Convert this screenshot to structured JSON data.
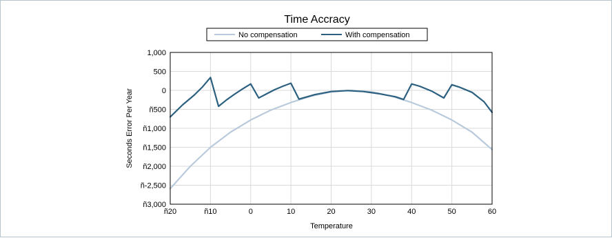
{
  "chart_data": {
    "type": "line",
    "title": "Time Accracy",
    "xlabel": "Temperature",
    "ylabel": "Seconds Error Per Year",
    "xlim": [
      -20,
      60
    ],
    "ylim": [
      -3000,
      1000
    ],
    "xticks": [
      -20,
      -10,
      0,
      10,
      20,
      30,
      40,
      50,
      60
    ],
    "xtick_labels": [
      "ñ20",
      "ñ10",
      "0",
      "10",
      "20",
      "30",
      "40",
      "50",
      "60"
    ],
    "yticks": [
      1000,
      500,
      0,
      -500,
      -1000,
      -1500,
      -2000,
      -2500,
      -3000
    ],
    "ytick_labels": [
      "1,000",
      "500",
      "0",
      "ñ500",
      "ñ1,000",
      "ñ1,500",
      "ñ2,000",
      "ñ-2,500",
      "ñ3,000"
    ],
    "grid": true,
    "legend_position": "top-center",
    "series": [
      {
        "name": "No compensation",
        "color": "#b8cadb",
        "x": [
          -20,
          -15,
          -10,
          -5,
          0,
          5,
          10,
          15,
          20,
          25,
          30,
          35,
          40,
          45,
          50,
          55,
          60
        ],
        "y": [
          -2590,
          -2000,
          -1500,
          -1100,
          -780,
          -520,
          -320,
          -150,
          -40,
          0,
          -40,
          -150,
          -320,
          -520,
          -780,
          -1100,
          -1560
        ]
      },
      {
        "name": "With compensation",
        "color": "#2c6080",
        "x": [
          -20,
          -17,
          -14,
          -12,
          -10,
          -8,
          -6,
          -4,
          -2,
          0,
          2,
          4,
          6,
          8,
          10,
          12,
          16,
          20,
          24,
          28,
          32,
          36,
          38,
          40,
          42,
          45,
          48,
          50,
          52,
          55,
          58,
          60
        ],
        "y": [
          -700,
          -390,
          -120,
          90,
          340,
          -420,
          -250,
          -100,
          40,
          170,
          -200,
          -90,
          20,
          110,
          190,
          -230,
          -110,
          -30,
          -5,
          -30,
          -90,
          -170,
          -240,
          170,
          110,
          -20,
          -200,
          150,
          80,
          -50,
          -300,
          -580
        ]
      }
    ]
  }
}
